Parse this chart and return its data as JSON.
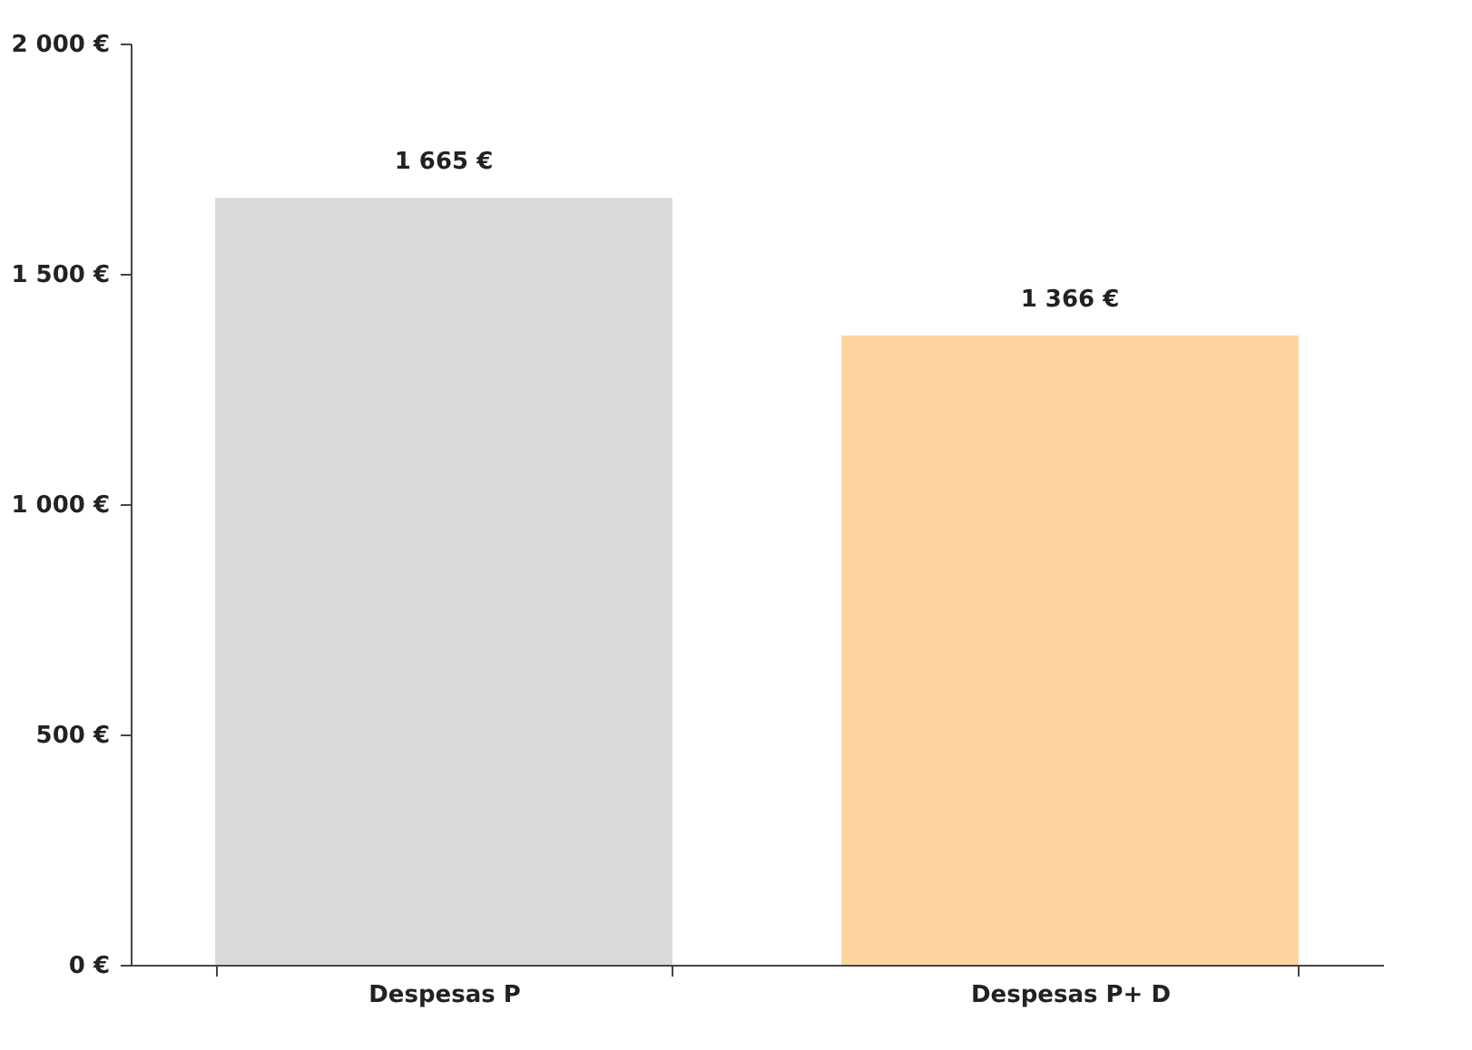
{
  "chart_data": {
    "type": "bar",
    "categories": [
      "Despesas P",
      "Despesas P+ D"
    ],
    "values": [
      1665,
      1366
    ],
    "colors": [
      "#d9d9d9",
      "#fdd49e"
    ],
    "value_labels": [
      "1 665 €",
      "1 366 €"
    ],
    "ylim": [
      0,
      2000
    ],
    "yticks": [
      {
        "value": 0,
        "label": "0 €"
      },
      {
        "value": 500,
        "label": "500 €"
      },
      {
        "value": 1000,
        "label": "1 000 €"
      },
      {
        "value": 1500,
        "label": "1 500 €"
      },
      {
        "value": 2000,
        "label": "2 000 €"
      }
    ],
    "grid": false
  }
}
